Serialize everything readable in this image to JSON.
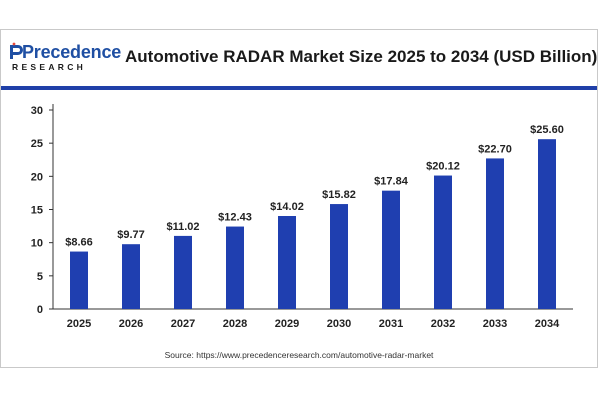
{
  "logo": {
    "name": "Precedence",
    "sub": "RESEARCH"
  },
  "title": "Automotive RADAR Market Size 2025 to 2034 (USD Billion)",
  "source": "Source: https://www.precedenceresearch.com/automotive-radar-market",
  "colors": {
    "bar": "#1f3fb0",
    "divider": "#1f3fa8",
    "brand": "#1f4fa3"
  },
  "chart_data": {
    "type": "bar",
    "title": "Automotive RADAR Market Size 2025 to 2034 (USD Billion)",
    "xlabel": "",
    "ylabel": "",
    "categories": [
      "2025",
      "2026",
      "2027",
      "2028",
      "2029",
      "2030",
      "2031",
      "2032",
      "2033",
      "2034"
    ],
    "values": [
      8.66,
      9.77,
      11.02,
      12.43,
      14.02,
      15.82,
      17.84,
      20.12,
      22.7,
      25.6
    ],
    "data_labels": [
      "$8.66",
      "$9.77",
      "$11.02",
      "$12.43",
      "$14.02",
      "$15.82",
      "$17.84",
      "$20.12",
      "$22.70",
      "$25.60"
    ],
    "ylim": [
      0,
      30
    ],
    "yticks": [
      0,
      5,
      10,
      15,
      20,
      25,
      30
    ],
    "grid": false,
    "legend": "none"
  }
}
